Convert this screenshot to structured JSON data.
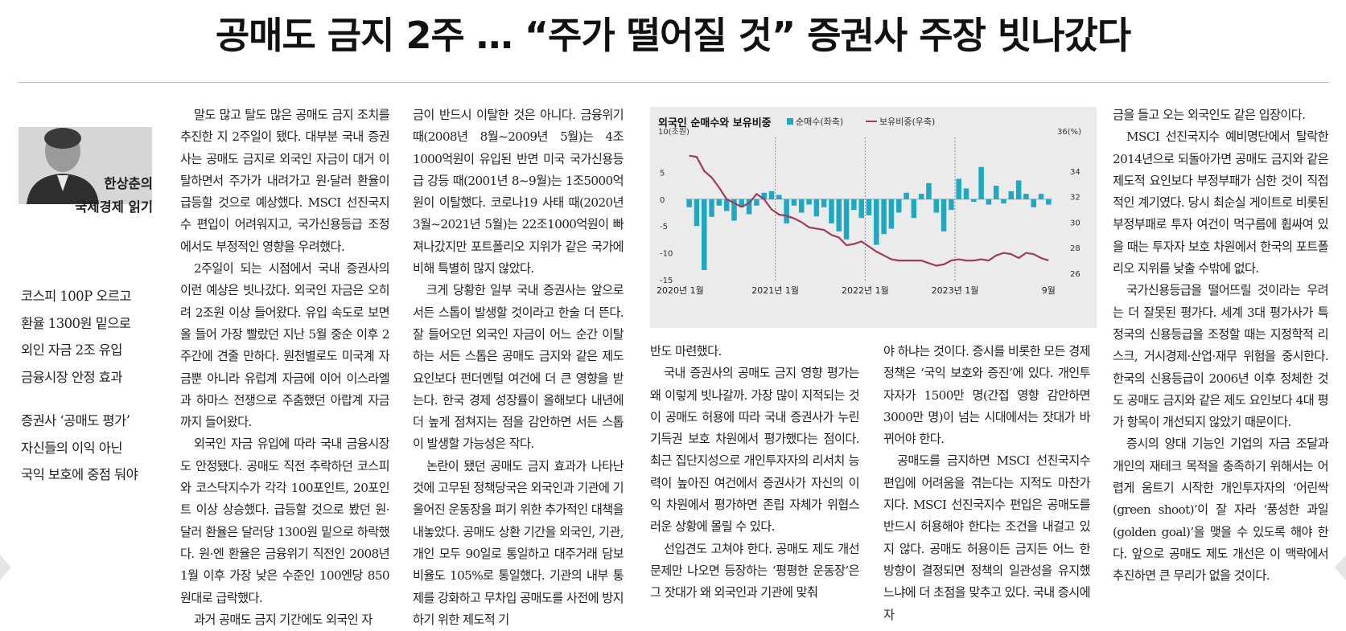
{
  "headline": "공매도 금지 2주 … “주가 떨어질 것” 증권사 주장 빗나갔다",
  "author": {
    "name": "한상춘의",
    "column": "국제경제 읽기"
  },
  "summary": [
    [
      "코스피 100P 오르고",
      "환율 1300원 밑으로",
      "외인 자금 2조 유입",
      "금융시장 안정 효과"
    ],
    [
      "증권사 ‘공매도 평가’",
      "자신들의 이익 아닌",
      "국익 보호에 중점 둬야"
    ]
  ],
  "col2": [
    "말도 많고 탈도 많은 공매도 금지 조치를 추진한 지 2주일이 됐다. 대부분 국내 증권사는 공매도 금지로 외국인 자금이 대거 이탈하면서 주가가 내려가고 원·달러 환율이 급등할 것으로 예상했다. MSCI 선진국지수 편입이 어려워지고, 국가신용등급 조정에서도 부정적인 영향을 우려했다.",
    "2주일이 되는 시점에서 국내 증권사의 이런 예상은 빗나갔다. 외국인 자금은 오히려 2조원 이상 들어왔다. 유입 속도로 보면 올 들어 가장 빨랐던 지난 5월 중순 이후 2주간에 견줄 만하다. 원천별로도 미국계 자금뿐 아니라 유럽계 자금에 이어 이스라엘과 하마스 전쟁으로 주춤했던 아랍계 자금까지 들어왔다.",
    "외국인 자금 유입에 따라 국내 금융시장도 안정됐다. 공매도 직전 추락하던 코스피와 코스닥지수가 각각 100포인트, 20포인트 이상 상승했다. 급등할 것으로 봤던 원·달러 환율은 달러당 1300원 밑으로 하락했다. 원·엔 환율은 금융위기 직전인 2008년 1월 이후 가장 낮은 수준인 100엔당 850원대로 급락했다.",
    "과거 공매도 금지 기간에도 외국인 자"
  ],
  "col3": [
    "금이 반드시 이탈한 것은 아니다. 금융위기 때(2008년 8월~2009년 5월)는 4조 1000억원이 유입된 반면 미국 국가신용등급 강등 때(2001년 8~9월)는 1조5000억원이 이탈했다. 코로나19 사태 때(2020년 3월~2021년 5월)는 22조1000억원이 빠져나갔지만 포트폴리오 지위가 같은 국가에 비해 특별히 많지 않았다.",
    "크게 당황한 일부 국내 증권사는 앞으로 서든 스톱이 발생할 것이라고 한술 더 뜬다. 잘 들어오던 외국인 자금이 어느 순간 이탈하는 서든 스톱은 공매도 금지와 같은 제도 요인보다 펀더멘털 여건에 더 큰 영향을 받는다. 한국 경제 성장률이 올해보다 내년에 더 높게 점쳐지는 점을 감안하면 서든 스톱이 발생할 가능성은 작다.",
    "논란이 됐던 공매도 금지 효과가 나타난 것에 고무된 정책당국은 외국인과 기관에 기울어진 운동장을 펴기 위한 추가적인 대책을 내놓았다. 공매도 상환 기간을 외국인, 기관, 개인 모두 90일로 통일하고 대주거래 담보 비율도 105%로 통일했다. 기관의 내부 통제를 강화하고 무차입 공매도를 사전에 방지하기 위한 제도적 기"
  ],
  "col3b": [
    "반도 마련했다.",
    "국내 증권사의 공매도 금지 영향 평가는 왜 이렇게 빗나갈까. 가장 많이 지적되는 것이 공매도 허용에 따라 국내 증권사가 누린 기득권 보호 차원에서 평가했다는 점이다. 최근 집단지성으로 개인투자자의 리서치 능력이 높아진 여건에서 증권사가 자신의 이익 차원에서 평가하면 존립 자체가 위협스러운 상황에 몰릴 수 있다.",
    "선입견도 고쳐야 한다. 공매도 제도 개선 문제만 나오면 등장하는 ‘평평한 운동장’은 그 잣대가 왜 외국인과 기관에 맞춰"
  ],
  "col4": [
    "야 하냐는 것이다. 증시를 비롯한 모든 경제정책은 ‘국익 보호와 증진’에 있다. 개인투자자가 1500만 명(간접 영향 감안하면 3000만 명)이 넘는 시대에서는 잣대가 바뀌어야 한다.",
    "공매도를 금지하면 MSCI 선진국지수 편입에 어려움을 겪는다는 지적도 마찬가지다. MSCI 선진국지수 편입은 공매도를 반드시 허용해야 한다는 조건을 내걸고 있지 않다. 공매도 허용이든 금지든 어느 한 방향이 결정되면 정책의 일관성을 유지했느냐에 더 초점을 맞추고 있다. 국내 증시에 자"
  ],
  "col5": [
    "금을 들고 오는 외국인도 같은 입장이다.",
    "MSCI 선진국지수 예비명단에서 탈락한 2014년으로 되돌아가면 공매도 금지와 같은 제도적 요인보다 부정부패가 심한 것이 직접적인 계기였다. 당시 최순실 게이트로 비롯된 부정부패로 투자 여건이 먹구름에 휩싸여 있을 때는 투자자 보호 차원에서 한국의 포트폴리오 지위를 낮출 수밖에 없다.",
    "국가신용등급을 떨어뜨릴 것이라는 우려는 더 잘못된 평가다. 세계 3대 평가사가 특정국의 신용등급을 조정할 때는 지정학적 리스크, 거시경제·산업·재무 위험을 중시한다. 한국의 신용등급이 2006년 이후 정체한 것도 공매도 금지와 같은 제도 요인보다 4대 평가 항목이 개선되지 않았기 때문이다.",
    "증시의 양대 기능인 기업의 자금 조달과 개인의 재테크 목적을 충족하기 위해서는 어렵게 움트기 시작한 개인투자자의 ‘어린싹(green shoot)’이 잘 자라 ‘풍성한 과일(golden goal)’을 맺을 수 있도록 해야 한다. 앞으로 공매도 제도 개선은 이 맥락에서 추진하면 큰 무리가 없을 것이다."
  ],
  "chart_data": {
    "type": "bar",
    "title": "외국인 순매수와 보유비중",
    "series": [
      {
        "name": "순매수(좌축)",
        "kind": "bar",
        "color": "#1fa8c1",
        "values": [
          -1.5,
          -5.0,
          -13.2,
          -3.3,
          -1.2,
          -2.2,
          -4.0,
          -1.5,
          -2.8,
          -1.2,
          1.2,
          1.5,
          0.8,
          -4.5,
          -1.2,
          -2.5,
          -1.0,
          -3.2,
          -1.5,
          -4.5,
          -6.0,
          -7.5,
          -2.0,
          -3.5,
          -3.0,
          -8.5,
          -6.5,
          -5.5,
          -2.5,
          1.2,
          -3.5,
          1.0,
          3.0,
          -2.5,
          -6.0,
          -2.0,
          3.8,
          2.0,
          -0.5,
          6.0,
          -1.0,
          2.5,
          -0.8,
          1.5,
          3.5,
          1.0,
          -1.5,
          1.0,
          -1.0
        ]
      },
      {
        "name": "보유비중(우축)",
        "kind": "line",
        "color": "#9c3b5b",
        "values": [
          35.2,
          35.1,
          34.0,
          33.5,
          32.7,
          31.8,
          31.5,
          31.2,
          31.5,
          32.2,
          31.8,
          31.0,
          30.6,
          30.5,
          30.3,
          30.0,
          29.6,
          29.5,
          29.4,
          29.0,
          28.8,
          28.2,
          28.3,
          28.5,
          28.1,
          27.7,
          27.4,
          27.1,
          27.0,
          27.0,
          27.0,
          27.0,
          26.8,
          26.6,
          26.7,
          27.0,
          27.1,
          27.0,
          27.0,
          27.1,
          27.0,
          27.4,
          27.6,
          27.5,
          27.2,
          27.6,
          27.5,
          27.2,
          27.0
        ]
      }
    ],
    "x_labels": [
      "2020년 1월",
      "2021년 1월",
      "2022년 1월",
      "2023년 1월",
      "9월"
    ],
    "y_left": {
      "unit": "10(조원)",
      "ticks": [
        "5",
        "0",
        "-5",
        "-10",
        "-15"
      ],
      "range": [
        -15,
        10
      ]
    },
    "y_right": {
      "unit": "36(%)",
      "ticks": [
        "34",
        "32",
        "30",
        "28",
        "26"
      ],
      "range": [
        25.5,
        36
      ]
    },
    "grid": "vertical dotted"
  }
}
